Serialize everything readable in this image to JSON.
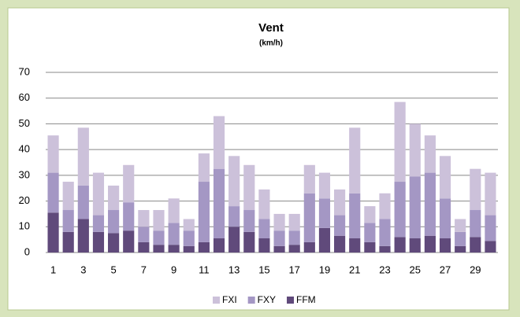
{
  "chart_data": {
    "type": "stacked_bar",
    "title": "Vent",
    "subtitle": "(km/h)",
    "categories": [
      1,
      null,
      3,
      null,
      5,
      null,
      7,
      null,
      9,
      null,
      11,
      null,
      13,
      null,
      15,
      null,
      17,
      null,
      19,
      null,
      21,
      null,
      23,
      null,
      25,
      null,
      27,
      null,
      29,
      null
    ],
    "series": [
      {
        "name": "FFM",
        "color": "#604a7b",
        "values": [
          15.5,
          8,
          13,
          8,
          7.5,
          8.5,
          4,
          3,
          3,
          2.5,
          4,
          5.5,
          10,
          8,
          5.5,
          2.5,
          3,
          4,
          9.5,
          6.5,
          5.5,
          4,
          2.5,
          6,
          5.5,
          6.5,
          5.5,
          2.5,
          6,
          4.5
        ]
      },
      {
        "name": "FXY",
        "color": "#a497c4",
        "values": [
          15.5,
          8.5,
          13,
          6.5,
          9,
          11,
          6,
          5.5,
          8.5,
          6,
          23.5,
          27,
          8,
          8.5,
          7.5,
          6,
          5.5,
          19,
          11.5,
          8,
          17.5,
          7.5,
          10.5,
          21.5,
          24,
          24.5,
          15.5,
          5.5,
          10.5,
          10
        ]
      },
      {
        "name": "FXI",
        "color": "#ccc1da",
        "values": [
          14.5,
          11,
          22.5,
          16.5,
          9.5,
          14.5,
          6.5,
          8,
          9.5,
          4.5,
          11,
          20.5,
          19.5,
          17.5,
          11.5,
          6.5,
          6.5,
          11,
          10,
          10,
          25.5,
          6.5,
          10,
          31,
          20.5,
          14.5,
          16.5,
          5,
          16,
          16.5
        ]
      }
    ],
    "ylim": [
      0,
      70
    ],
    "yticks": [
      0,
      10,
      20,
      30,
      40,
      50,
      60,
      70
    ],
    "grid": true,
    "legend": "bottom"
  }
}
